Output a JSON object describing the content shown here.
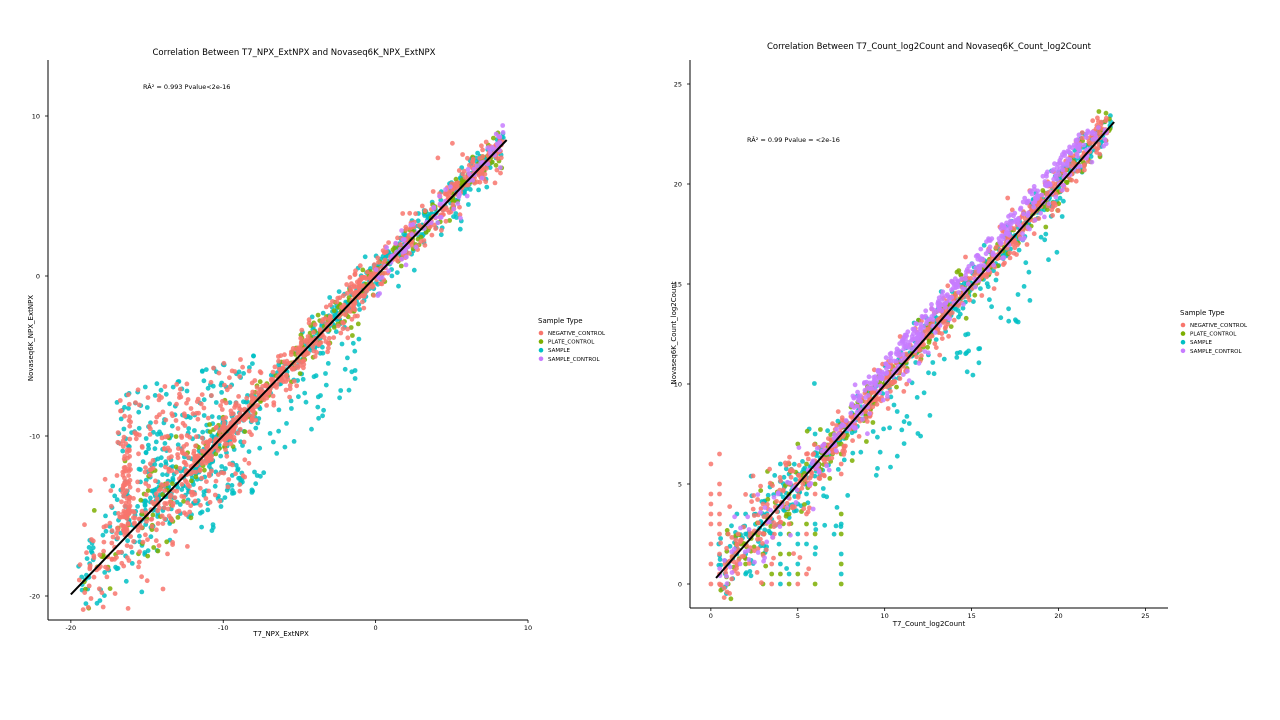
{
  "chart_data": [
    {
      "type": "scatter",
      "title": "Correlation Between T7_NPX_ExtNPX and Novaseq6K_NPX_ExtNPX",
      "annotation": "RÂ² = 0.993 Pvalue<2e-16",
      "xlabel": "T7_NPX_ExtNPX",
      "ylabel": "Novaseq6K_NPX_ExtNPX",
      "xlim": [
        -21.5,
        10
      ],
      "ylim": [
        -21.5,
        13.5
      ],
      "xticks": [
        -20,
        -10,
        0,
        10
      ],
      "yticks": [
        -20,
        -10,
        0,
        10
      ],
      "grid": false,
      "legend_position": "right",
      "legend_title": "Sample Type",
      "series": [
        {
          "name": "NEGATIVE_CONTROL",
          "color": "#F8766D"
        },
        {
          "name": "PLATE_CONTROL",
          "color": "#7CAE00"
        },
        {
          "name": "SAMPLE",
          "color": "#00BFC4"
        },
        {
          "name": "SAMPLE_CONTROL",
          "color": "#C77CFF"
        }
      ],
      "regression_line": {
        "x": [
          -20,
          8.6
        ],
        "y": [
          -19.9,
          8.5
        ]
      }
    },
    {
      "type": "scatter",
      "title": "Correlation Between T7_Count_log2Count and Novaseq6K_Count_log2Count",
      "annotation": "RÂ² = 0.99 Pvalue = <2e-16",
      "xlabel": "T7_Count_log2Count",
      "ylabel": "Novaseq6K_Count_log2Count",
      "xlim": [
        -1.2,
        26.3
      ],
      "ylim": [
        -1.2,
        26.2
      ],
      "xticks": [
        0,
        5,
        10,
        15,
        20,
        25
      ],
      "yticks": [
        0,
        5,
        10,
        15,
        20,
        25
      ],
      "grid": false,
      "legend_position": "right",
      "legend_title": "Sample Type",
      "series": [
        {
          "name": "NEGATIVE_CONTROL",
          "color": "#F8766D"
        },
        {
          "name": "PLATE_CONTROL",
          "color": "#7CAE00"
        },
        {
          "name": "SAMPLE",
          "color": "#00BFC4"
        },
        {
          "name": "SAMPLE_CONTROL",
          "color": "#C77CFF"
        }
      ],
      "regression_line": {
        "x": [
          0.3,
          23.2
        ],
        "y": [
          0.3,
          23.1
        ]
      }
    }
  ]
}
